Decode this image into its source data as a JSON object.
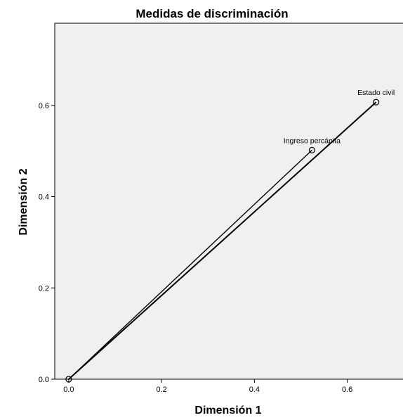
{
  "chart_data": {
    "type": "scatter",
    "title": "Medidas de discriminación",
    "xlabel": "Dimensión 1",
    "ylabel": "Dimensión 2",
    "xlim": [
      -0.03,
      0.72
    ],
    "ylim": [
      0.0,
      0.78
    ],
    "x_ticks": [
      0.0,
      0.2,
      0.4,
      0.6
    ],
    "y_ticks": [
      0.0,
      0.2,
      0.4,
      0.6
    ],
    "x_tick_labels": [
      "0.0",
      "0.2",
      "0.4",
      "0.6"
    ],
    "y_tick_labels": [
      "0.0",
      "0.2",
      "0.4",
      "0.6"
    ],
    "grid": false,
    "plot_background": "#f0f0f0",
    "line_color": "#000000",
    "origin": [
      0.0,
      0.0
    ],
    "points": [
      {
        "label": "Ingreso percápita",
        "x": 0.524,
        "y": 0.502
      },
      {
        "label": "Estado civil",
        "x": 0.662,
        "y": 0.607
      }
    ]
  }
}
